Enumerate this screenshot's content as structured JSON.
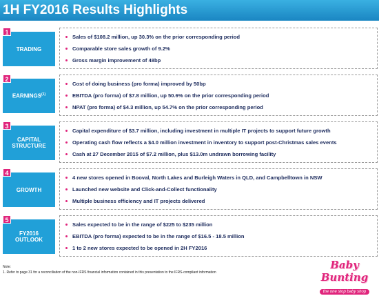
{
  "header": {
    "title": "1H FY2016 Results Highlights"
  },
  "sections": [
    {
      "number": "1",
      "label": [
        "TRADING"
      ],
      "bullets": [
        "Sales of $108.2 million, up 30.3% on the prior corresponding period",
        "Comparable store sales growth of 9.2%",
        "Gross margin improvement of 48bp"
      ]
    },
    {
      "number": "2",
      "label": [
        "EARNINGS"
      ],
      "label_sup": "(1)",
      "bullets": [
        "Cost of doing business (pro forma) improved by 50bp",
        "EBITDA (pro forma) of $7.8 million, up 50.6% on the prior corresponding period",
        "NPAT (pro forma) of $4.3 million, up 54.7% on the prior corresponding period"
      ]
    },
    {
      "number": "3",
      "label": [
        "CAPITAL",
        "STRUCTURE"
      ],
      "bullets": [
        "Capital expenditure of $3.7 million, including investment in multiple IT projects to support future growth",
        "Operating cash flow reflects a $4.0 million investment in inventory to support post-Christmas sales events",
        "Cash at 27 December 2015 of $7.2 million, plus $13.0m undrawn borrowing facility"
      ]
    },
    {
      "number": "4",
      "label": [
        "GROWTH"
      ],
      "bullets": [
        "4 new stores opened in Booval, North Lakes and Burleigh Waters in QLD, and Campbelltown in NSW",
        "Launched new website and Click-and-Collect functionality",
        "Multiple business efficiency and IT projects delivered"
      ]
    },
    {
      "number": "5",
      "label": [
        "FY2016",
        "OUTLOOK"
      ],
      "bullets": [
        "Sales expected to be in the range of $225 to $235 million",
        "EBITDA (pro forma) expected to be in the range of $16.5 - 18.5 million",
        "1 to 2 new stores expected to be opened in 2H FY2016"
      ]
    }
  ],
  "note": {
    "heading": "Note:",
    "items": [
      "1.   Refer to page 31 for a reconciliation of the non-IFRS financial information contained in this presentation to the IFRS-compliant information"
    ]
  },
  "logo": {
    "name": "Baby Bunting",
    "tagline": "the one stop baby shop"
  }
}
